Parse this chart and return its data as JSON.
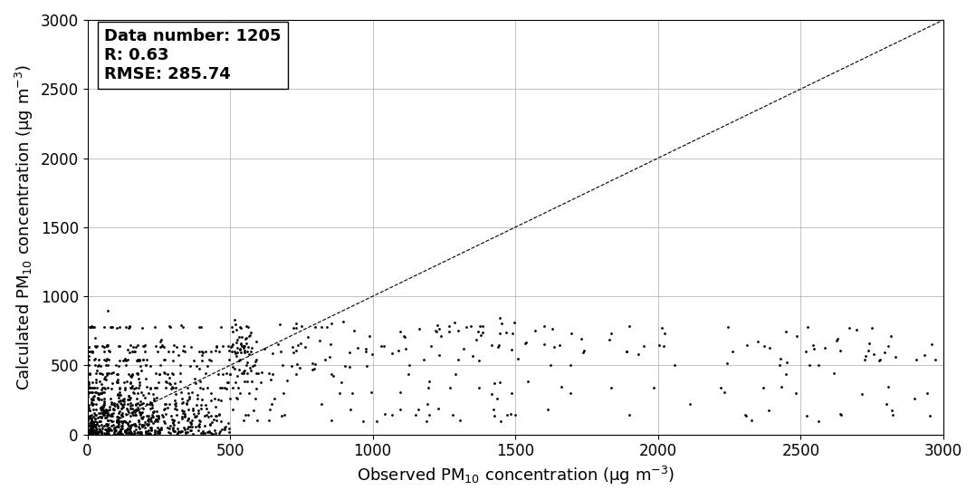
{
  "title": "",
  "xlabel": "Observed PM$_{10}$ concentration (μg m$^{-3}$)",
  "ylabel": "Calculated PM$_{10}$ concentration (μg m$^{-3}$)",
  "xlim": [
    0,
    3000
  ],
  "ylim": [
    0,
    3000
  ],
  "xticks": [
    0,
    500,
    1000,
    1500,
    2000,
    2500,
    3000
  ],
  "yticks": [
    0,
    500,
    1000,
    1500,
    2000,
    2500,
    3000
  ],
  "data_number": 1205,
  "R": 0.63,
  "RMSE": 285.74,
  "scatter_color": "black",
  "scatter_size": 4,
  "scatter_marker": "o",
  "line_color": "black",
  "line_style": "--",
  "background_color": "#ffffff",
  "grid_color": "#aaaaaa",
  "annotation_fontsize": 13,
  "axis_fontsize": 13,
  "tick_fontsize": 12,
  "seed": 42
}
